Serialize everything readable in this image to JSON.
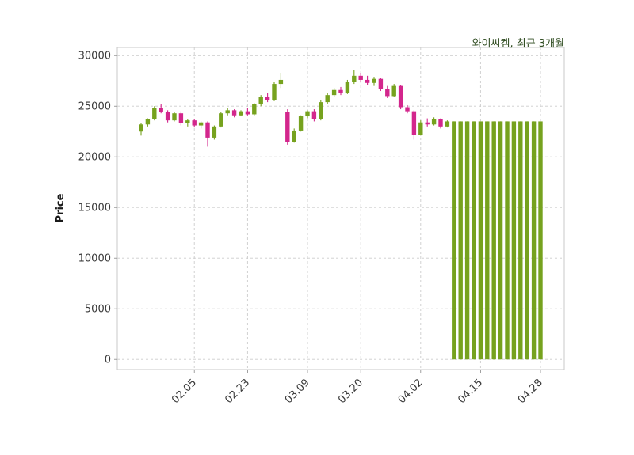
{
  "header": {
    "title": "와이씨켐, 최근 3개월"
  },
  "chart_data": {
    "type": "candlestick",
    "title": "와이씨켐, 최근 3개월",
    "xlabel": "",
    "ylabel": "Price",
    "ylim": [
      -1000,
      30800
    ],
    "yticks": [
      0,
      5000,
      10000,
      15000,
      20000,
      25000,
      30000
    ],
    "xtick_labels": [
      "02.05",
      "02.23",
      "03.09",
      "03.20",
      "04.02",
      "04.15",
      "04.28"
    ],
    "xtick_indices": [
      8,
      16,
      25,
      33,
      42,
      51,
      60
    ],
    "grid": true,
    "colors": {
      "up": "#76a21e",
      "down": "#d3268c",
      "grid": "#cccccc",
      "spine": "#c9c9c9",
      "tick_label": "#3a3a3a",
      "title": "#2e4b1f",
      "background": "#ffffff"
    },
    "candles": [
      [
        22500,
        23300,
        22100,
        23200
      ],
      [
        23200,
        23800,
        23000,
        23700
      ],
      [
        23700,
        25000,
        23600,
        24800
      ],
      [
        24800,
        25200,
        24300,
        24400
      ],
      [
        24400,
        24600,
        23400,
        23600
      ],
      [
        23600,
        24400,
        23500,
        24300
      ],
      [
        24300,
        24500,
        23100,
        23300
      ],
      [
        23300,
        23700,
        23000,
        23600
      ],
      [
        23600,
        23700,
        22900,
        23100
      ],
      [
        23100,
        23500,
        22800,
        23400
      ],
      [
        23400,
        23500,
        21000,
        21900
      ],
      [
        21900,
        23100,
        21700,
        23000
      ],
      [
        23000,
        24400,
        22900,
        24300
      ],
      [
        24300,
        24800,
        24100,
        24600
      ],
      [
        24600,
        24700,
        23900,
        24100
      ],
      [
        24100,
        24600,
        24000,
        24500
      ],
      [
        24500,
        24800,
        24100,
        24200
      ],
      [
        24200,
        25300,
        24100,
        25200
      ],
      [
        25200,
        26100,
        25000,
        25900
      ],
      [
        25900,
        26300,
        25400,
        25600
      ],
      [
        25600,
        27400,
        25500,
        27200
      ],
      [
        27200,
        28300,
        26800,
        27600
      ],
      [
        24400,
        24700,
        21200,
        21500
      ],
      [
        21500,
        22800,
        21400,
        22600
      ],
      [
        22600,
        24100,
        22500,
        24000
      ],
      [
        24000,
        24600,
        23800,
        24500
      ],
      [
        24500,
        24700,
        23500,
        23700
      ],
      [
        23700,
        25600,
        23600,
        25400
      ],
      [
        25400,
        26300,
        25200,
        26100
      ],
      [
        26100,
        26800,
        25900,
        26600
      ],
      [
        26600,
        26900,
        26100,
        26300
      ],
      [
        26300,
        27600,
        26200,
        27400
      ],
      [
        27400,
        28600,
        27200,
        28000
      ],
      [
        28000,
        28300,
        27400,
        27600
      ],
      [
        27600,
        28000,
        27100,
        27300
      ],
      [
        27300,
        27900,
        27000,
        27700
      ],
      [
        27700,
        27800,
        26500,
        26700
      ],
      [
        26700,
        27000,
        25800,
        26000
      ],
      [
        26000,
        27200,
        25900,
        27000
      ],
      [
        27000,
        27100,
        24700,
        24900
      ],
      [
        24900,
        25100,
        24300,
        24500
      ],
      [
        24500,
        24600,
        21700,
        22200
      ],
      [
        22200,
        23600,
        22100,
        23400
      ],
      [
        23400,
        23800,
        23000,
        23200
      ],
      [
        23200,
        23900,
        23100,
        23700
      ],
      [
        23700,
        23800,
        22800,
        23000
      ],
      [
        23000,
        23600,
        22900,
        23500
      ],
      [
        0,
        23500,
        0,
        23500
      ],
      [
        0,
        23500,
        0,
        23500
      ],
      [
        0,
        23500,
        0,
        23500
      ],
      [
        0,
        23500,
        0,
        23500
      ],
      [
        0,
        23500,
        0,
        23500
      ],
      [
        0,
        23500,
        0,
        23500
      ],
      [
        0,
        23500,
        0,
        23500
      ],
      [
        0,
        23500,
        0,
        23500
      ],
      [
        0,
        23500,
        0,
        23500
      ],
      [
        0,
        23500,
        0,
        23500
      ],
      [
        0,
        23500,
        0,
        23500
      ],
      [
        0,
        23500,
        0,
        23500
      ],
      [
        0,
        23500,
        0,
        23500
      ],
      [
        0,
        23500,
        0,
        23500
      ]
    ]
  }
}
